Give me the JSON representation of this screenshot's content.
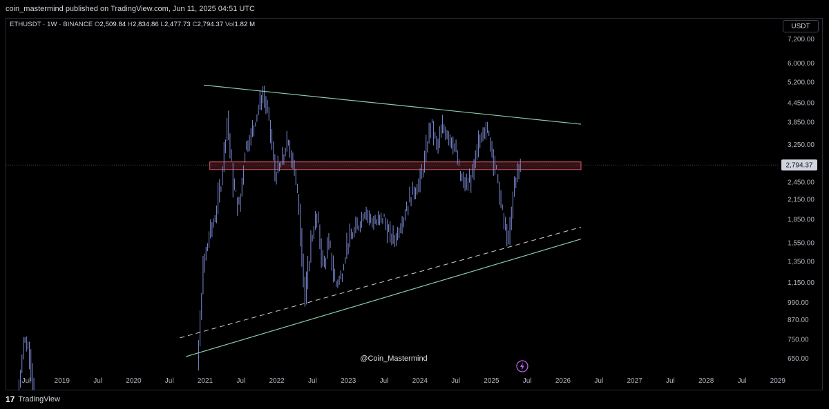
{
  "header": {
    "publish_text": "coin_mastermind published on TradingView.com, Jun 11, 2025 04:51 UTC"
  },
  "legend": {
    "symbol": "ETHUSDT · 1W · BINANCE",
    "open_label": "O",
    "open": "2,509.84",
    "high_label": "H",
    "high": "2,834.86",
    "low_label": "L",
    "low": "2,477.73",
    "close_label": "C",
    "close": "2,794.37",
    "vol_label": "Vol",
    "vol": "1.82 M"
  },
  "currency_button": "USDT",
  "watermark": "@Coin_Mastermind",
  "footer": {
    "brand": "TradingView",
    "logo": "17"
  },
  "colors": {
    "background": "#000000",
    "candle": "#7d8ad4",
    "trendline": "#8ccba8",
    "zone_border": "#e05b6a",
    "zone_fill": "#5a1f26",
    "price_label_bg": "#d1d4dc",
    "bolt_icon": "#b562e8"
  },
  "chart_data": {
    "type": "candlestick",
    "symbol": "ETHUSDT",
    "interval": "1W",
    "exchange": "BINANCE",
    "y_scale": "log",
    "ylim": [
      600,
      8000
    ],
    "y_ticks": [
      "7,200.00",
      "6,000.00",
      "5,200.00",
      "4,450.00",
      "3,850.00",
      "3,250.00",
      "2,450.00",
      "2,150.00",
      "1,850.00",
      "1,550.00",
      "1,350.00",
      "1,150.00",
      "990.00",
      "870.00",
      "750.00",
      "650.00"
    ],
    "x_ticks": [
      "Jul",
      "2019",
      "Jul",
      "2020",
      "Jul",
      "2021",
      "Jul",
      "2022",
      "Jul",
      "2023",
      "Jul",
      "2024",
      "Jul",
      "2025",
      "Jul",
      "2026",
      "Jul",
      "2027",
      "Jul",
      "2028",
      "Jul",
      "2029"
    ],
    "last_price": "2,794.37",
    "price_path": [
      [
        "2018-06",
        480
      ],
      [
        "2018-07",
        760
      ],
      [
        "2018-08",
        680
      ],
      [
        "2018-09",
        450
      ],
      [
        "2020-12",
        600
      ],
      [
        "2021-01",
        1300
      ],
      [
        "2021-02",
        1650
      ],
      [
        "2021-03",
        1900
      ],
      [
        "2021-04",
        2500
      ],
      [
        "2021-05",
        4000
      ],
      [
        "2021-06",
        2400
      ],
      [
        "2021-07",
        2000
      ],
      [
        "2021-08",
        3200
      ],
      [
        "2021-09",
        3500
      ],
      [
        "2021-10",
        4200
      ],
      [
        "2021-11",
        4800
      ],
      [
        "2021-12",
        3900
      ],
      [
        "2022-01",
        2600
      ],
      [
        "2022-02",
        2800
      ],
      [
        "2022-03",
        3300
      ],
      [
        "2022-04",
        2900
      ],
      [
        "2022-05",
        2000
      ],
      [
        "2022-06",
        1000
      ],
      [
        "2022-07",
        1600
      ],
      [
        "2022-08",
        1900
      ],
      [
        "2022-09",
        1300
      ],
      [
        "2022-10",
        1550
      ],
      [
        "2022-11",
        1150
      ],
      [
        "2022-12",
        1200
      ],
      [
        "2023-01",
        1550
      ],
      [
        "2023-02",
        1650
      ],
      [
        "2023-03",
        1800
      ],
      [
        "2023-04",
        2000
      ],
      [
        "2023-05",
        1850
      ],
      [
        "2023-06",
        1800
      ],
      [
        "2023-07",
        1900
      ],
      [
        "2023-08",
        1650
      ],
      [
        "2023-09",
        1600
      ],
      [
        "2023-10",
        1800
      ],
      [
        "2023-11",
        2050
      ],
      [
        "2023-12",
        2300
      ],
      [
        "2024-01",
        2400
      ],
      [
        "2024-02",
        2900
      ],
      [
        "2024-03",
        3900
      ],
      [
        "2024-04",
        3200
      ],
      [
        "2024-05",
        3700
      ],
      [
        "2024-06",
        3500
      ],
      [
        "2024-07",
        3200
      ],
      [
        "2024-08",
        2500
      ],
      [
        "2024-09",
        2400
      ],
      [
        "2024-10",
        2600
      ],
      [
        "2024-11",
        3300
      ],
      [
        "2024-12",
        3800
      ],
      [
        "2025-01",
        3300
      ],
      [
        "2025-02",
        2600
      ],
      [
        "2025-03",
        1900
      ],
      [
        "2025-04",
        1550
      ],
      [
        "2025-05",
        2500
      ],
      [
        "2025-06",
        2794
      ]
    ],
    "annotations": {
      "resistance_line": {
        "from": [
          "2021-01",
          5100
        ],
        "to": [
          "2026-04",
          3800
        ]
      },
      "support_line": {
        "from": [
          "2020-10",
          660
        ],
        "to": [
          "2026-04",
          1600
        ]
      },
      "dashed_line": {
        "from": [
          "2020-09",
          760
        ],
        "to": [
          "2026-04",
          1750
        ]
      },
      "zone": {
        "from": "2021-02",
        "to": "2026-04",
        "low": 2700,
        "high": 2860
      },
      "current_price_line": 2794.37
    }
  }
}
